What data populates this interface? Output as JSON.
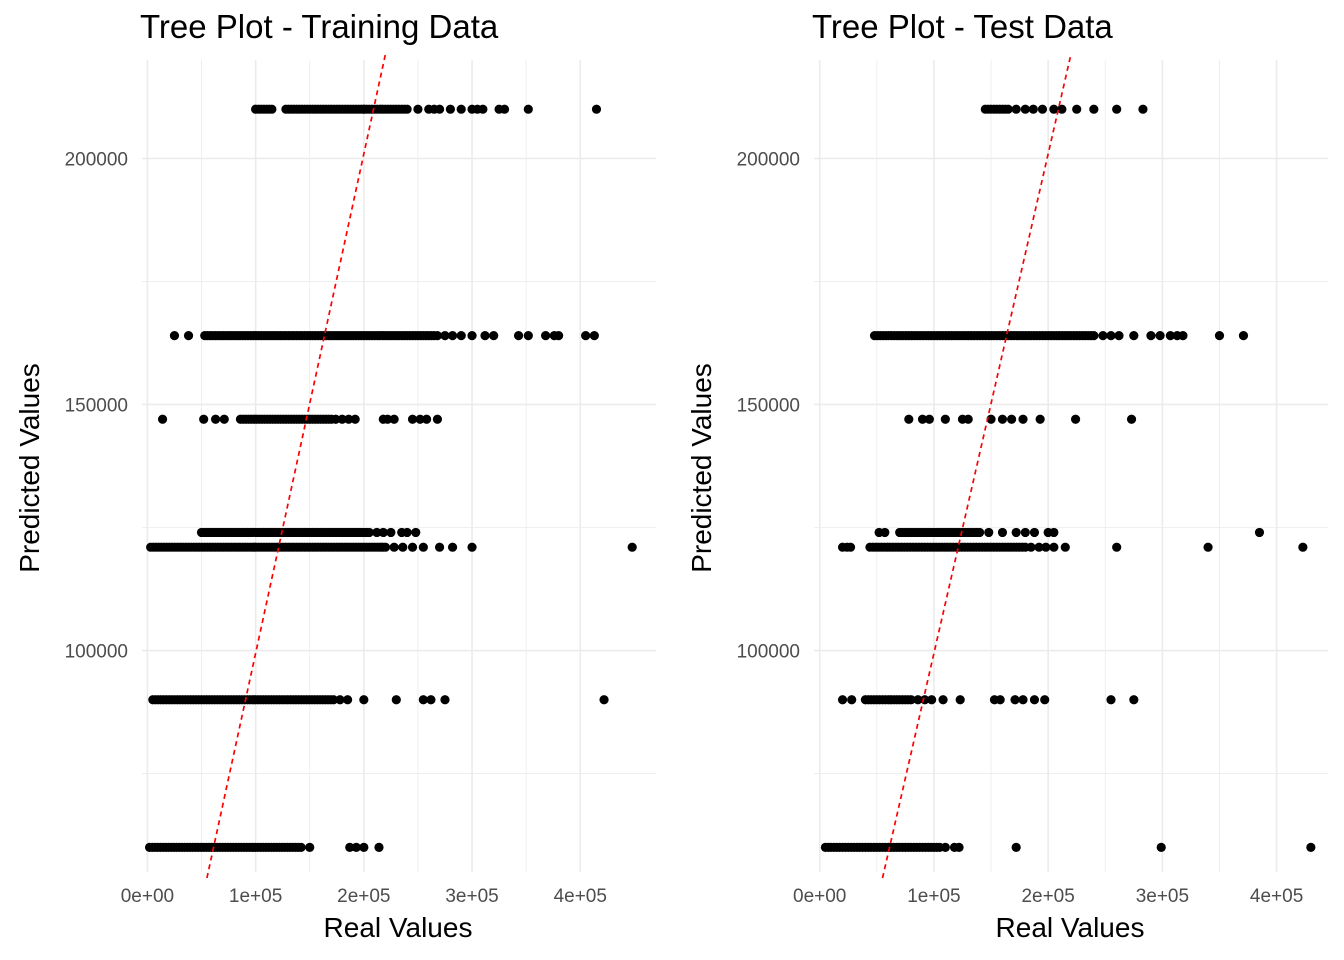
{
  "chart_data": [
    {
      "type": "scatter",
      "title": "Tree Plot - Training Data",
      "xlabel": "Real Values",
      "ylabel": "Predicted Values",
      "xlim": [
        -5000,
        470000
      ],
      "ylim": [
        55000,
        220000
      ],
      "x_ticks": [
        0,
        100000,
        200000,
        300000,
        400000
      ],
      "x_tick_labels": [
        "0e+00",
        "1e+05",
        "2e+05",
        "3e+05",
        "4e+05"
      ],
      "y_ticks": [
        100000,
        150000,
        200000
      ],
      "y_tick_labels": [
        "100000",
        "150000",
        "200000"
      ],
      "grid": true,
      "reference_line": {
        "style": "dashed",
        "color": "#ff0000",
        "x_from": 55000,
        "y_from": 55000,
        "x_to": 220000,
        "y_to": 220000
      },
      "point_color": "#000000",
      "series": [
        {
          "predicted": 210000,
          "real_ranges": [
            [
              100000,
              115000
            ],
            [
              128000,
              200000
            ],
            [
              200000,
              240000
            ]
          ],
          "real_singles": [
            250000,
            260000,
            265000,
            270000,
            280000,
            290000,
            300000,
            305000,
            310000,
            325000,
            330000,
            352000,
            415000
          ]
        },
        {
          "predicted": 164000,
          "real_ranges": [
            [
              53000,
              265000
            ]
          ],
          "real_singles": [
            25000,
            38000,
            268000,
            275000,
            282000,
            290000,
            300000,
            312000,
            320000,
            343000,
            352000,
            368000,
            376000,
            380000,
            405000,
            413000
          ]
        },
        {
          "predicted": 147000,
          "real_ranges": [
            [
              86000,
              170000
            ]
          ],
          "real_singles": [
            14000,
            52000,
            63000,
            71000,
            174000,
            180000,
            186000,
            192000,
            218000,
            222000,
            228000,
            245000,
            252000,
            258000,
            268000
          ]
        },
        {
          "predicted": 124000,
          "real_ranges": [
            [
              50000,
              205000
            ]
          ],
          "real_singles": [
            212000,
            218000,
            225000,
            235000,
            240000,
            248000
          ]
        },
        {
          "predicted": 121000,
          "real_ranges": [
            [
              3000,
              220000
            ]
          ],
          "real_singles": [
            228000,
            236000,
            245000,
            255000,
            270000,
            282000,
            300000,
            448000
          ]
        },
        {
          "predicted": 90000,
          "real_ranges": [
            [
              5000,
              172000
            ]
          ],
          "real_singles": [
            178000,
            185000,
            200000,
            230000,
            255000,
            262000,
            275000,
            422000
          ]
        },
        {
          "predicted": 60000,
          "real_ranges": [
            [
              2000,
              142000
            ]
          ],
          "real_singles": [
            150000,
            187000,
            193000,
            200000,
            214000
          ]
        }
      ]
    },
    {
      "type": "scatter",
      "title": "Tree Plot - Test Data",
      "xlabel": "Real Values",
      "ylabel": "Predicted Values",
      "xlim": [
        -5000,
        445000
      ],
      "ylim": [
        55000,
        220000
      ],
      "x_ticks": [
        0,
        100000,
        200000,
        300000,
        400000
      ],
      "x_tick_labels": [
        "0e+00",
        "1e+05",
        "2e+05",
        "3e+05",
        "4e+05"
      ],
      "y_ticks": [
        100000,
        150000,
        200000
      ],
      "y_tick_labels": [
        "100000",
        "150000",
        "200000"
      ],
      "grid": true,
      "reference_line": {
        "style": "dashed",
        "color": "#ff0000",
        "x_from": 55000,
        "y_from": 55000,
        "x_to": 220000,
        "y_to": 220000
      },
      "point_color": "#000000",
      "series": [
        {
          "predicted": 210000,
          "real_ranges": [
            [
              145000,
              165000
            ]
          ],
          "real_singles": [
            172000,
            180000,
            187000,
            195000,
            205000,
            212000,
            225000,
            240000,
            260000,
            283000
          ]
        },
        {
          "predicted": 164000,
          "real_ranges": [
            [
              48000,
              240000
            ]
          ],
          "real_singles": [
            248000,
            255000,
            262000,
            275000,
            290000,
            298000,
            307000,
            313000,
            318000,
            350000,
            371000
          ]
        },
        {
          "predicted": 147000,
          "real_ranges": [],
          "real_singles": [
            78000,
            90000,
            96000,
            110000,
            125000,
            130000,
            150000,
            160000,
            168000,
            178000,
            193000,
            224000,
            273000
          ]
        },
        {
          "predicted": 124000,
          "real_ranges": [
            [
              70000,
              140000
            ]
          ],
          "real_singles": [
            52000,
            57000,
            148000,
            160000,
            172000,
            180000,
            188000,
            200000,
            205000,
            385000
          ]
        },
        {
          "predicted": 121000,
          "real_ranges": [
            [
              44000,
              180000
            ]
          ],
          "real_singles": [
            20000,
            24000,
            27000,
            185000,
            192000,
            198000,
            205000,
            215000,
            260000,
            340000,
            423000
          ]
        },
        {
          "predicted": 90000,
          "real_ranges": [
            [
              40000,
              80000
            ]
          ],
          "real_singles": [
            20000,
            28000,
            86000,
            92000,
            98000,
            108000,
            123000,
            153000,
            158000,
            171000,
            178000,
            188000,
            197000,
            255000,
            275000
          ]
        },
        {
          "predicted": 60000,
          "real_ranges": [
            [
              5000,
              105000
            ]
          ],
          "real_singles": [
            110000,
            118000,
            122000,
            172000,
            299000,
            430000
          ]
        }
      ]
    }
  ]
}
